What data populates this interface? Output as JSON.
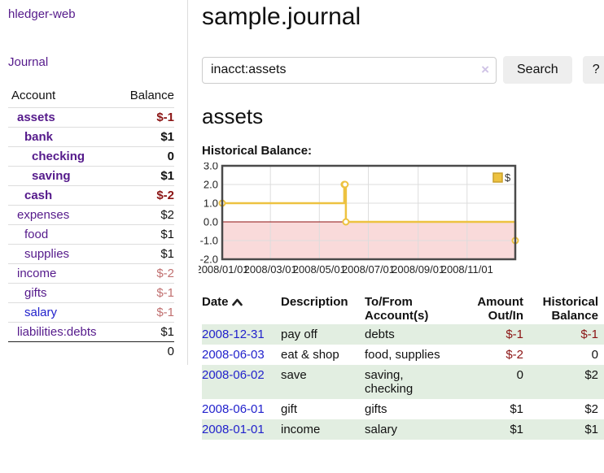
{
  "sidebar": {
    "brand": "hledger-web",
    "nav_journal": "Journal",
    "accounts_table": {
      "col_account": "Account",
      "col_balance": "Balance",
      "rows": [
        {
          "name": "assets",
          "indent": 1,
          "bold": true,
          "balance": "$-1",
          "neg": "strong",
          "link": "purple"
        },
        {
          "name": "bank",
          "indent": 2,
          "bold": true,
          "balance": "$1",
          "neg": "none",
          "link": "purple"
        },
        {
          "name": "checking",
          "indent": 3,
          "bold": true,
          "balance": "0",
          "neg": "none",
          "link": "purple"
        },
        {
          "name": "saving",
          "indent": 3,
          "bold": true,
          "balance": "$1",
          "neg": "none",
          "link": "purple"
        },
        {
          "name": "cash",
          "indent": 2,
          "bold": true,
          "balance": "$-2",
          "neg": "strong",
          "link": "purple"
        },
        {
          "name": "expenses",
          "indent": 1,
          "bold": false,
          "balance": "$2",
          "neg": "none",
          "link": "purple"
        },
        {
          "name": "food",
          "indent": 2,
          "bold": false,
          "balance": "$1",
          "neg": "none",
          "link": "purple"
        },
        {
          "name": "supplies",
          "indent": 2,
          "bold": false,
          "balance": "$1",
          "neg": "none",
          "link": "purple"
        },
        {
          "name": "income",
          "indent": 1,
          "bold": false,
          "balance": "$-2",
          "neg": "soft",
          "link": "purple"
        },
        {
          "name": "gifts",
          "indent": 2,
          "bold": false,
          "balance": "$-1",
          "neg": "soft",
          "link": "purple"
        },
        {
          "name": "salary",
          "indent": 2,
          "bold": false,
          "balance": "$-1",
          "neg": "soft",
          "link": "blue"
        },
        {
          "name": "liabilities:debts",
          "indent": 1,
          "bold": false,
          "balance": "$1",
          "neg": "none",
          "link": "purple"
        }
      ],
      "total": "0"
    }
  },
  "main": {
    "title": "sample.journal",
    "search": {
      "value": "inacct:assets",
      "clear_icon": "×",
      "button_label": "Search",
      "help_label": "?"
    },
    "account_heading": "assets",
    "chart_label": "Historical Balance:",
    "register": {
      "headers": {
        "date": "Date",
        "description": "Description",
        "tofrom": "To/From\nAccount(s)",
        "amount": "Amount\nOut/In",
        "balance": "Historical\nBalance"
      },
      "rows": [
        {
          "date": "2008-12-31",
          "desc": "pay off",
          "accounts": "debts",
          "amount": "$-1",
          "amount_neg": true,
          "balance": "$-1",
          "balance_neg": true
        },
        {
          "date": "2008-06-03",
          "desc": "eat & shop",
          "accounts": "food, supplies",
          "amount": "$-2",
          "amount_neg": true,
          "balance": "0",
          "balance_neg": false
        },
        {
          "date": "2008-06-02",
          "desc": "save",
          "accounts": "saving,\nchecking",
          "amount": "0",
          "amount_neg": false,
          "balance": "$2",
          "balance_neg": false
        },
        {
          "date": "2008-06-01",
          "desc": "gift",
          "accounts": "gifts",
          "amount": "$1",
          "amount_neg": false,
          "balance": "$2",
          "balance_neg": false
        },
        {
          "date": "2008-01-01",
          "desc": "income",
          "accounts": "salary",
          "amount": "$1",
          "amount_neg": false,
          "balance": "$1",
          "balance_neg": false
        }
      ]
    }
  },
  "chart_data": {
    "type": "line",
    "step": true,
    "title": "Historical Balance:",
    "xlabel": "",
    "ylabel": "",
    "x_type": "date",
    "series": [
      {
        "name": "$",
        "points": [
          {
            "date": "2008-01-01",
            "day": 0,
            "value": 1
          },
          {
            "date": "2008-06-01",
            "day": 152,
            "value": 2
          },
          {
            "date": "2008-06-02",
            "day": 153,
            "value": 2
          },
          {
            "date": "2008-06-03",
            "day": 154,
            "value": 0
          },
          {
            "date": "2008-12-31",
            "day": 365,
            "value": -1
          }
        ]
      }
    ],
    "xlim": [
      0,
      365
    ],
    "ylim": [
      -2,
      3
    ],
    "yticks": [
      3,
      2,
      1,
      0,
      -1,
      -2
    ],
    "ytick_labels": [
      "3.0",
      "2.0",
      "1.0",
      "0.0",
      "-1.0",
      "-2.0"
    ],
    "xticks": [
      {
        "day": 0,
        "label": "2008/01/01"
      },
      {
        "day": 60,
        "label": "2008/03/01"
      },
      {
        "day": 121,
        "label": "2008/05/01"
      },
      {
        "day": 182,
        "label": "2008/07/01"
      },
      {
        "day": 244,
        "label": "2008/09/01"
      },
      {
        "day": 305,
        "label": "2008/11/01"
      }
    ],
    "legend": {
      "label": "$",
      "position": "top-right"
    },
    "grid": true,
    "colors": {
      "series": "#edc240",
      "series_border": "#c9a02c",
      "marker_fill": "#ffffff",
      "negative_region": "#f9dada",
      "zero_line": "#8e1010",
      "grid": "#dddddd",
      "border": "#4a4a4a"
    }
  },
  "colors": {
    "link_purple": "#551a8b",
    "link_blue": "#2222cc",
    "negative_strong": "#8b1414",
    "negative_soft": "#c17070",
    "row_shade_green": "#e2eee1",
    "button_gray": "#eeeeee"
  }
}
